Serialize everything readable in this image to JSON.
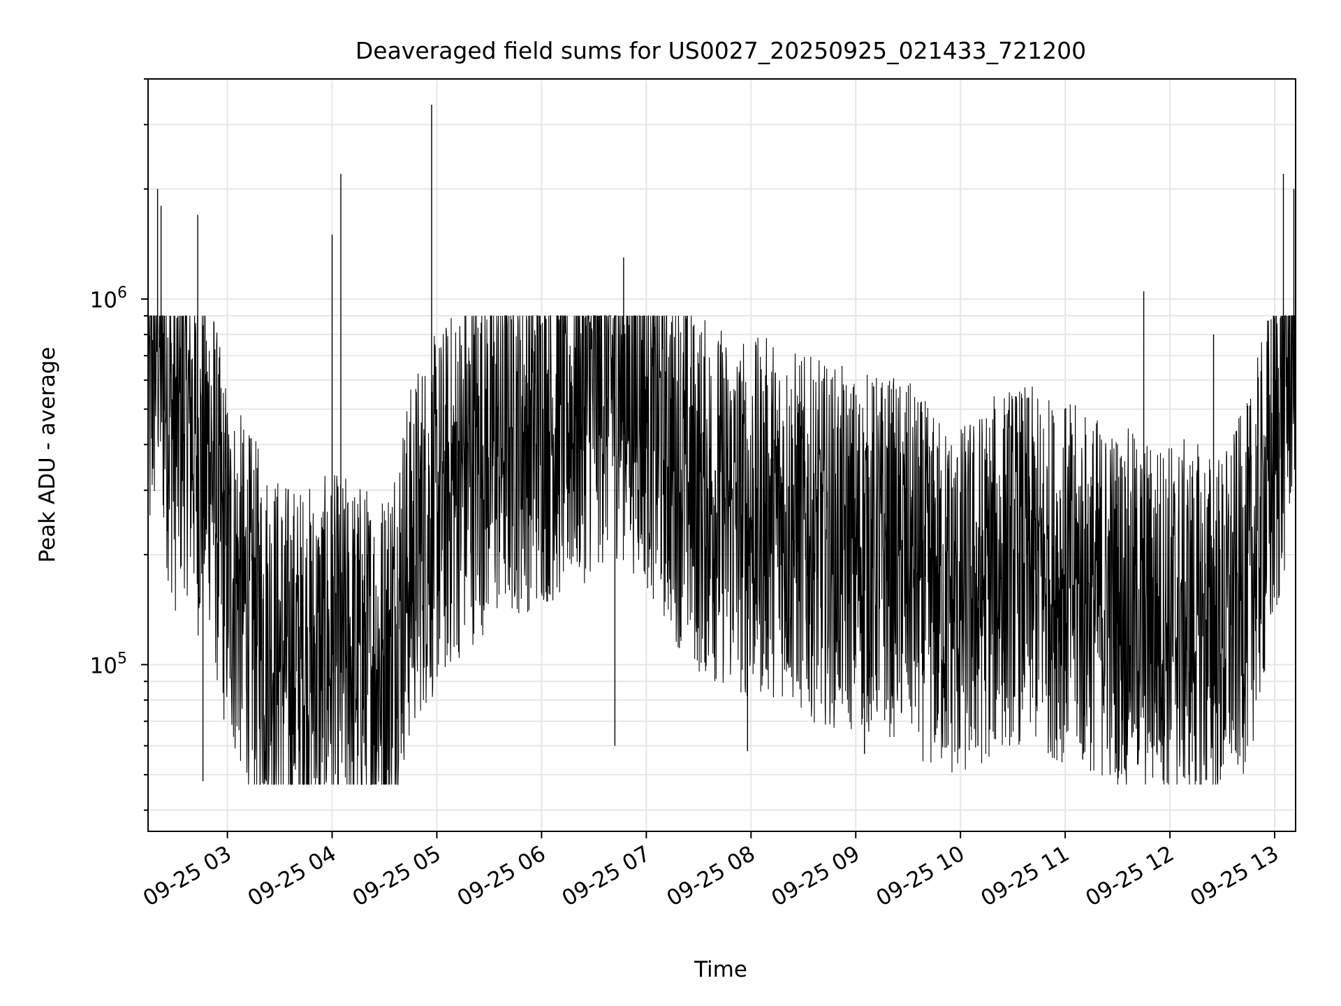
{
  "chart_data": {
    "type": "line",
    "title": "Deaveraged field sums for US0027_20250925_021433_721200",
    "xlabel": "Time",
    "ylabel": "Peak ADU - average",
    "yscale": "log",
    "ylim": [
      35000,
      4000000
    ],
    "xlim": [
      "2025-09-25 02:14:33",
      "2025-09-25 13:12:00"
    ],
    "grid": true,
    "line_color": "#000000",
    "grid_color": "#e6e6e6",
    "x_ticks": [
      {
        "t": "2025-09-25 03:00",
        "label": "09-25 03"
      },
      {
        "t": "2025-09-25 04:00",
        "label": "09-25 04"
      },
      {
        "t": "2025-09-25 05:00",
        "label": "09-25 05"
      },
      {
        "t": "2025-09-25 06:00",
        "label": "09-25 06"
      },
      {
        "t": "2025-09-25 07:00",
        "label": "09-25 07"
      },
      {
        "t": "2025-09-25 08:00",
        "label": "09-25 08"
      },
      {
        "t": "2025-09-25 09:00",
        "label": "09-25 09"
      },
      {
        "t": "2025-09-25 10:00",
        "label": "09-25 10"
      },
      {
        "t": "2025-09-25 11:00",
        "label": "09-25 11"
      },
      {
        "t": "2025-09-25 12:00",
        "label": "09-25 12"
      },
      {
        "t": "2025-09-25 13:00",
        "label": "09-25 13"
      }
    ],
    "y_ticks": [
      {
        "value": 100000,
        "base": "10",
        "exp": "5"
      },
      {
        "value": 1000000,
        "base": "10",
        "exp": "6"
      }
    ],
    "series": [
      {
        "points": [
          [
            "2025-09-25 02:15",
            450000
          ],
          [
            "2025-09-25 02:20",
            800000
          ],
          [
            "2025-09-25 02:25",
            500000
          ],
          [
            "2025-09-25 02:30",
            380000
          ],
          [
            "2025-09-25 02:35",
            450000
          ],
          [
            "2025-09-25 02:40",
            400000
          ],
          [
            "2025-09-25 02:45",
            300000
          ],
          [
            "2025-09-25 02:50",
            350000
          ],
          [
            "2025-09-25 02:55",
            220000
          ],
          [
            "2025-09-25 03:00",
            170000
          ],
          [
            "2025-09-25 03:10",
            130000
          ],
          [
            "2025-09-25 03:20",
            110000
          ],
          [
            "2025-09-25 03:30",
            95000
          ],
          [
            "2025-09-25 03:40",
            90000
          ],
          [
            "2025-09-25 03:50",
            90000
          ],
          [
            "2025-09-25 04:00",
            95000
          ],
          [
            "2025-09-25 04:10",
            95000
          ],
          [
            "2025-09-25 04:20",
            90000
          ],
          [
            "2025-09-25 04:30",
            90000
          ],
          [
            "2025-09-25 04:40",
            140000
          ],
          [
            "2025-09-25 04:50",
            200000
          ],
          [
            "2025-09-25 05:00",
            230000
          ],
          [
            "2025-09-25 05:15",
            300000
          ],
          [
            "2025-09-25 05:30",
            350000
          ],
          [
            "2025-09-25 05:45",
            380000
          ],
          [
            "2025-09-25 06:00",
            400000
          ],
          [
            "2025-09-25 06:15",
            420000
          ],
          [
            "2025-09-25 06:30",
            500000
          ],
          [
            "2025-09-25 06:45",
            550000
          ],
          [
            "2025-09-25 07:00",
            450000
          ],
          [
            "2025-09-25 07:15",
            330000
          ],
          [
            "2025-09-25 07:30",
            260000
          ],
          [
            "2025-09-25 07:45",
            240000
          ],
          [
            "2025-09-25 08:00",
            220000
          ],
          [
            "2025-09-25 08:15",
            230000
          ],
          [
            "2025-09-25 08:30",
            200000
          ],
          [
            "2025-09-25 08:45",
            190000
          ],
          [
            "2025-09-25 09:00",
            180000
          ],
          [
            "2025-09-25 09:15",
            180000
          ],
          [
            "2025-09-25 09:30",
            170000
          ],
          [
            "2025-09-25 09:45",
            140000
          ],
          [
            "2025-09-25 10:00",
            130000
          ],
          [
            "2025-09-25 10:15",
            150000
          ],
          [
            "2025-09-25 10:30",
            170000
          ],
          [
            "2025-09-25 10:45",
            160000
          ],
          [
            "2025-09-25 11:00",
            150000
          ],
          [
            "2025-09-25 11:15",
            140000
          ],
          [
            "2025-09-25 11:30",
            130000
          ],
          [
            "2025-09-25 11:45",
            120000
          ],
          [
            "2025-09-25 12:00",
            120000
          ],
          [
            "2025-09-25 12:15",
            115000
          ],
          [
            "2025-09-25 12:30",
            110000
          ],
          [
            "2025-09-25 12:45",
            150000
          ],
          [
            "2025-09-25 12:55",
            250000
          ],
          [
            "2025-09-25 13:00",
            330000
          ],
          [
            "2025-09-25 13:05",
            450000
          ],
          [
            "2025-09-25 13:10",
            750000
          ],
          [
            "2025-09-25 13:12",
            900000
          ]
        ],
        "spikes": [
          [
            "2025-09-25 02:20",
            2000000
          ],
          [
            "2025-09-25 02:22",
            1800000
          ],
          [
            "2025-09-25 02:43",
            1700000
          ],
          [
            "2025-09-25 02:46",
            48000
          ],
          [
            "2025-09-25 04:05",
            2200000
          ],
          [
            "2025-09-25 04:00",
            1500000
          ],
          [
            "2025-09-25 04:25",
            55000
          ],
          [
            "2025-09-25 04:57",
            3400000
          ],
          [
            "2025-09-25 06:47",
            1300000
          ],
          [
            "2025-09-25 06:42",
            60000
          ],
          [
            "2025-09-25 07:58",
            58000
          ],
          [
            "2025-09-25 09:05",
            57000
          ],
          [
            "2025-09-25 10:10",
            60000
          ],
          [
            "2025-09-25 11:10",
            55000
          ],
          [
            "2025-09-25 11:45",
            1050000
          ],
          [
            "2025-09-25 12:25",
            800000
          ],
          [
            "2025-09-25 13:05",
            2200000
          ],
          [
            "2025-09-25 13:11",
            2000000
          ]
        ]
      }
    ]
  }
}
